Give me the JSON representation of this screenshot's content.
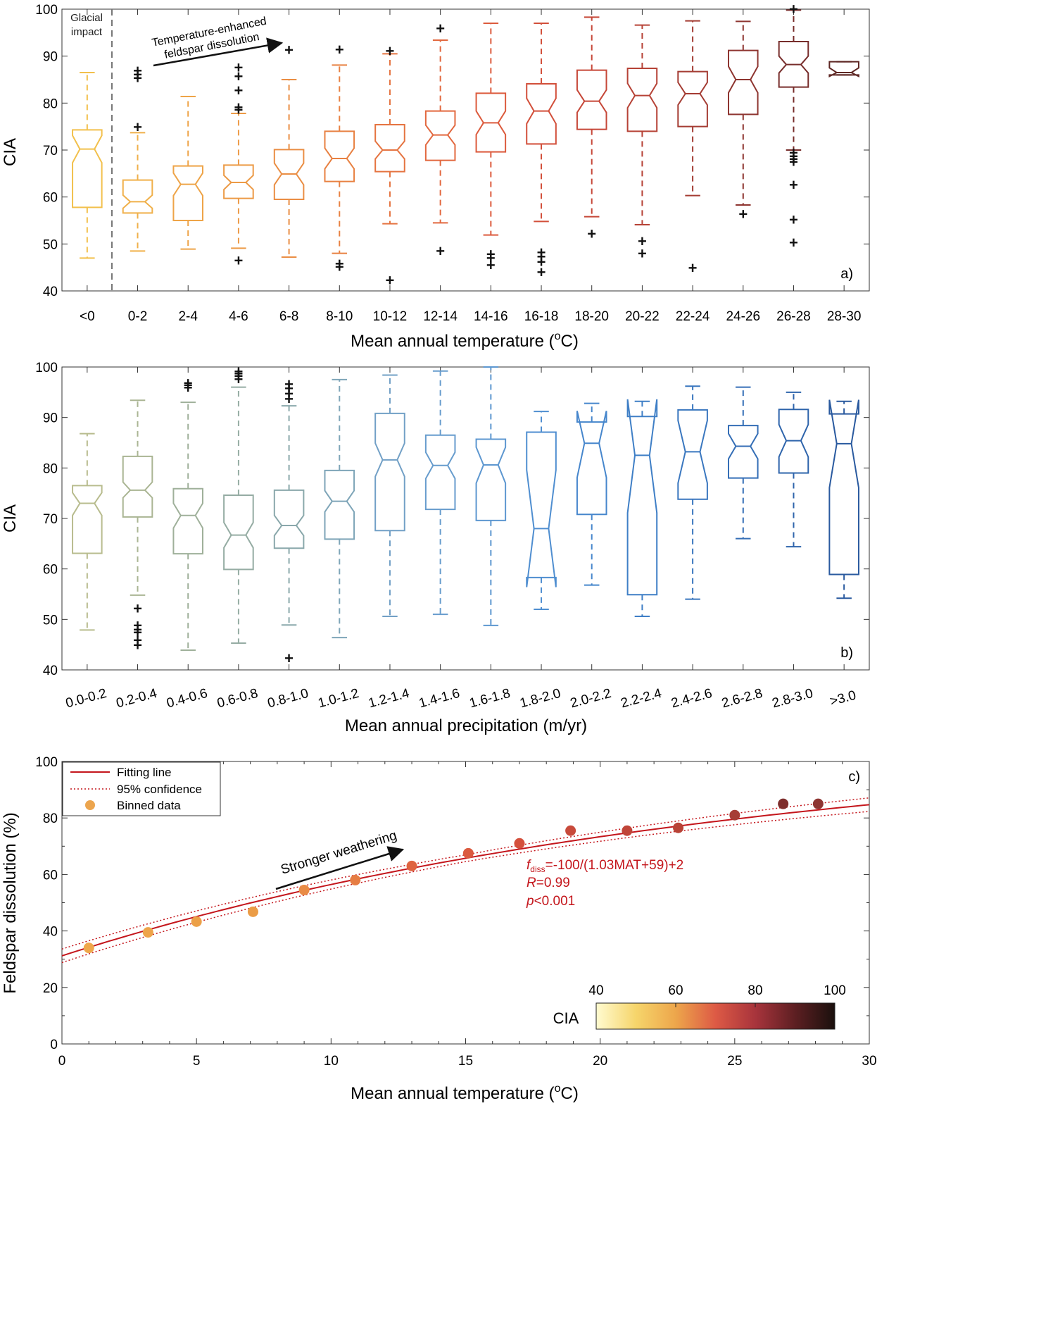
{
  "chart_data": [
    {
      "type": "box",
      "panel_label": "a)",
      "xlabel": "Mean annual temperature (",
      "xlabel_sup": "o",
      "xlabel_end": "C)",
      "ylabel": "CIA",
      "ylim": [
        40,
        100
      ],
      "yticks": [
        40,
        50,
        60,
        70,
        80,
        90,
        100
      ],
      "categories": [
        "<0",
        "0-2",
        "2-4",
        "4-6",
        "6-8",
        "8-10",
        "10-12",
        "12-14",
        "14-16",
        "16-18",
        "18-20",
        "20-22",
        "22-24",
        "24-26",
        "26-28",
        "28-30"
      ],
      "colors": [
        "#f2c04c",
        "#f0b04a",
        "#eea448",
        "#ec9a46",
        "#ea8e44",
        "#e88142",
        "#e57441",
        "#e2683f",
        "#dc5b3d",
        "#d24f3a",
        "#c64738",
        "#b64236",
        "#a43c33",
        "#8e3530",
        "#772d2b",
        "#5e2724"
      ],
      "boxes": [
        {
          "q1": 57.8,
          "median": 70.2,
          "q3": 74.3,
          "lo": 47.0,
          "hi": 86.5,
          "notch_lo": 67.3,
          "notch_hi": 73.1,
          "outliers": []
        },
        {
          "q1": 56.6,
          "median": 59.0,
          "q3": 63.6,
          "lo": 48.5,
          "hi": 73.7,
          "notch_lo": 57.6,
          "notch_hi": 60.4,
          "outliers": [
            74.8,
            85.2,
            86.0,
            86.8
          ]
        },
        {
          "q1": 55.0,
          "median": 62.7,
          "q3": 66.6,
          "lo": 48.9,
          "hi": 81.4,
          "notch_lo": 60.3,
          "notch_hi": 65.1,
          "outliers": []
        },
        {
          "q1": 59.7,
          "median": 63.1,
          "q3": 66.8,
          "lo": 49.1,
          "hi": 77.8,
          "notch_lo": 61.6,
          "notch_hi": 64.6,
          "outliers": [
            46.4,
            78.5,
            79.0,
            82.6,
            85.6,
            87.5
          ]
        },
        {
          "q1": 59.5,
          "median": 64.9,
          "q3": 70.1,
          "lo": 47.2,
          "hi": 85.0,
          "notch_lo": 62.6,
          "notch_hi": 67.2,
          "outliers": [
            91.2
          ]
        },
        {
          "q1": 63.3,
          "median": 68.2,
          "q3": 74.0,
          "lo": 48.0,
          "hi": 88.1,
          "notch_lo": 66.0,
          "notch_hi": 70.4,
          "outliers": [
            45.0,
            45.7,
            91.3
          ]
        },
        {
          "q1": 65.4,
          "median": 70.0,
          "q3": 75.4,
          "lo": 54.3,
          "hi": 90.5,
          "notch_lo": 68.1,
          "notch_hi": 71.9,
          "outliers": [
            42.2,
            91.0
          ]
        },
        {
          "q1": 67.8,
          "median": 73.2,
          "q3": 78.3,
          "lo": 54.5,
          "hi": 93.4,
          "notch_lo": 71.1,
          "notch_hi": 75.3,
          "outliers": [
            48.4,
            95.8
          ]
        },
        {
          "q1": 69.6,
          "median": 75.8,
          "q3": 82.1,
          "lo": 51.9,
          "hi": 97.0,
          "notch_lo": 73.3,
          "notch_hi": 78.3,
          "outliers": [
            45.4,
            46.9,
            47.7
          ]
        },
        {
          "q1": 71.3,
          "median": 78.3,
          "q3": 84.1,
          "lo": 54.8,
          "hi": 97.0,
          "notch_lo": 75.6,
          "notch_hi": 81.0,
          "outliers": [
            43.9,
            46.1,
            47.2,
            48.1
          ]
        },
        {
          "q1": 74.4,
          "median": 80.4,
          "q3": 87.0,
          "lo": 55.8,
          "hi": 98.3,
          "notch_lo": 78.0,
          "notch_hi": 82.8,
          "outliers": [
            52.1
          ]
        },
        {
          "q1": 74.0,
          "median": 81.6,
          "q3": 87.4,
          "lo": 54.1,
          "hi": 96.6,
          "notch_lo": 79.0,
          "notch_hi": 84.2,
          "outliers": [
            47.9,
            50.5
          ]
        },
        {
          "q1": 75.0,
          "median": 82.0,
          "q3": 86.7,
          "lo": 60.3,
          "hi": 97.5,
          "notch_lo": 79.6,
          "notch_hi": 84.4,
          "outliers": [
            44.8
          ]
        },
        {
          "q1": 77.6,
          "median": 85.0,
          "q3": 91.2,
          "lo": 58.3,
          "hi": 97.4,
          "notch_lo": 82.2,
          "notch_hi": 87.8,
          "outliers": [
            56.3
          ]
        },
        {
          "q1": 83.4,
          "median": 88.2,
          "q3": 93.1,
          "lo": 70.0,
          "hi": 99.8,
          "notch_lo": 86.4,
          "notch_hi": 90.0,
          "outliers": [
            50.2,
            55.1,
            62.5,
            67.4,
            68.0,
            68.6,
            69.3,
            99.9
          ]
        },
        {
          "q1": 86.0,
          "median": 86.5,
          "q3": 88.8,
          "lo": 86.0,
          "hi": 88.8,
          "notch_lo": 85.7,
          "notch_hi": 87.5,
          "outliers": []
        }
      ],
      "annotations": {
        "glacial_line1": "Glacial",
        "glacial_line2": "impact",
        "arrow_line1": "Temperature-enhanced",
        "arrow_line2": "feldspar dissolution"
      }
    },
    {
      "type": "box",
      "panel_label": "b)",
      "xlabel": "Mean annual precipitation (m/yr)",
      "ylabel": "CIA",
      "ylim": [
        40,
        100
      ],
      "yticks": [
        40,
        50,
        60,
        70,
        80,
        90,
        100
      ],
      "categories": [
        "0.0-0.2",
        "0.2-0.4",
        "0.4-0.6",
        "0.6-0.8",
        "0.8-1.0",
        "1.0-1.2",
        "1.2-1.4",
        "1.4-1.6",
        "1.6-1.8",
        "1.8-2.0",
        "2.0-2.2",
        "2.2-2.4",
        "2.4-2.6",
        "2.6-2.8",
        "2.8-3.0",
        ">3.0"
      ],
      "colors": [
        "#b8bc8e",
        "#aab593",
        "#9fb09a",
        "#95aca3",
        "#8aa8ab",
        "#7ea5b8",
        "#72a0c6",
        "#679ccd",
        "#5d97d0",
        "#4f8ed0",
        "#4686cc",
        "#3f7fc6",
        "#3a77bf",
        "#346eb6",
        "#2e64ab",
        "#2a5a9f"
      ],
      "boxes": [
        {
          "q1": 63.1,
          "median": 73.0,
          "q3": 76.5,
          "lo": 47.9,
          "hi": 86.8,
          "notch_lo": 70.6,
          "notch_hi": 75.1,
          "outliers": []
        },
        {
          "q1": 70.3,
          "median": 75.6,
          "q3": 82.3,
          "lo": 54.8,
          "hi": 93.4,
          "notch_lo": 74.1,
          "notch_hi": 77.2,
          "outliers": [
            44.8,
            45.8,
            47.3,
            47.9,
            48.7,
            52.1
          ]
        },
        {
          "q1": 63.0,
          "median": 70.6,
          "q3": 75.9,
          "lo": 43.9,
          "hi": 93.0,
          "notch_lo": 68.1,
          "notch_hi": 73.0,
          "outliers": [
            95.8,
            96.3,
            96.7
          ]
        },
        {
          "q1": 59.9,
          "median": 66.7,
          "q3": 74.6,
          "lo": 45.3,
          "hi": 96.0,
          "notch_lo": 64.2,
          "notch_hi": 69.2,
          "outliers": [
            97.5,
            98.1,
            98.6,
            99.0
          ]
        },
        {
          "q1": 64.1,
          "median": 68.6,
          "q3": 75.6,
          "lo": 48.9,
          "hi": 92.3,
          "notch_lo": 66.6,
          "notch_hi": 70.6,
          "outliers": [
            42.2,
            93.6,
            94.6,
            95.7,
            96.5
          ]
        },
        {
          "q1": 65.9,
          "median": 73.4,
          "q3": 79.5,
          "lo": 46.4,
          "hi": 97.5,
          "notch_lo": 71.3,
          "notch_hi": 75.5,
          "outliers": []
        },
        {
          "q1": 67.6,
          "median": 81.6,
          "q3": 90.8,
          "lo": 50.6,
          "hi": 98.4,
          "notch_lo": 78.3,
          "notch_hi": 84.9,
          "outliers": []
        },
        {
          "q1": 71.8,
          "median": 80.5,
          "q3": 86.5,
          "lo": 51.0,
          "hi": 99.2,
          "notch_lo": 77.9,
          "notch_hi": 83.1,
          "outliers": []
        },
        {
          "q1": 69.6,
          "median": 80.6,
          "q3": 85.7,
          "lo": 48.8,
          "hi": 100.0,
          "notch_lo": 77.0,
          "notch_hi": 84.1,
          "outliers": []
        },
        {
          "q1": 58.3,
          "median": 68.0,
          "q3": 87.1,
          "lo": 52.0,
          "hi": 91.2,
          "notch_lo": 56.4,
          "notch_hi": 79.6,
          "outliers": []
        },
        {
          "q1": 70.8,
          "median": 84.9,
          "q3": 89.1,
          "lo": 56.8,
          "hi": 92.8,
          "notch_lo": 78.1,
          "notch_hi": 91.3,
          "outliers": []
        },
        {
          "q1": 54.9,
          "median": 82.5,
          "q3": 90.2,
          "lo": 50.6,
          "hi": 93.2,
          "notch_lo": 71.1,
          "notch_hi": 93.6,
          "outliers": []
        },
        {
          "q1": 73.8,
          "median": 83.2,
          "q3": 91.5,
          "lo": 54.0,
          "hi": 96.2,
          "notch_lo": 77.0,
          "notch_hi": 89.4,
          "outliers": []
        },
        {
          "q1": 78.0,
          "median": 84.3,
          "q3": 88.4,
          "lo": 66.0,
          "hi": 96.0,
          "notch_lo": 81.8,
          "notch_hi": 86.8,
          "outliers": []
        },
        {
          "q1": 79.0,
          "median": 85.4,
          "q3": 91.6,
          "lo": 64.4,
          "hi": 95.0,
          "notch_lo": 82.2,
          "notch_hi": 88.6,
          "outliers": []
        },
        {
          "q1": 58.9,
          "median": 84.8,
          "q3": 90.7,
          "lo": 54.2,
          "hi": 93.2,
          "notch_lo": 76.1,
          "notch_hi": 93.5,
          "outliers": []
        }
      ]
    },
    {
      "type": "scatter",
      "panel_label": "c)",
      "xlabel": "Mean annual temperature (",
      "xlabel_sup": "o",
      "xlabel_end": "C)",
      "ylabel": "Feldspar dissolution (%)",
      "xlim": [
        0,
        30
      ],
      "ylim": [
        0,
        100
      ],
      "xticks": [
        0,
        5,
        10,
        15,
        20,
        25,
        30
      ],
      "yticks": [
        0,
        20,
        40,
        60,
        80,
        100
      ],
      "points": [
        {
          "x": 1.0,
          "y": 34.0,
          "color": "#efa84b"
        },
        {
          "x": 3.2,
          "y": 39.5,
          "color": "#eea449"
        },
        {
          "x": 5.0,
          "y": 43.3,
          "color": "#eca047"
        },
        {
          "x": 7.1,
          "y": 46.8,
          "color": "#eb9c46"
        },
        {
          "x": 9.0,
          "y": 54.5,
          "color": "#e98b45"
        },
        {
          "x": 10.9,
          "y": 58.0,
          "color": "#e67d43"
        },
        {
          "x": 13.0,
          "y": 63.0,
          "color": "#df6440"
        },
        {
          "x": 15.1,
          "y": 67.5,
          "color": "#db5a3f"
        },
        {
          "x": 17.0,
          "y": 71.0,
          "color": "#d4503c"
        },
        {
          "x": 18.9,
          "y": 75.5,
          "color": "#c84a3b"
        },
        {
          "x": 21.0,
          "y": 75.5,
          "color": "#c04539"
        },
        {
          "x": 22.9,
          "y": 76.5,
          "color": "#b84337"
        },
        {
          "x": 25.0,
          "y": 81.0,
          "color": "#a63e36"
        },
        {
          "x": 26.8,
          "y": 85.0,
          "color": "#7e2e2d"
        },
        {
          "x": 28.1,
          "y": 85.0,
          "color": "#8e3532"
        }
      ],
      "legend": {
        "fit": "Fitting line",
        "ci": "95% confidence",
        "binned": "Binned data",
        "position": "top-left"
      },
      "fit_color": "#c4161c",
      "arrow_label": "Stronger weathering",
      "equation": {
        "f": "f",
        "sub": "diss",
        "rest": "=-100/(1.03MAT+59)+2",
        "r_label": "R",
        "r_value": "=0.99",
        "p_label": "p",
        "p_value": "<0.001"
      },
      "colorbar": {
        "label": "CIA",
        "ticks": [
          40,
          60,
          80,
          100
        ],
        "colors": [
          "#fffbd0",
          "#f6d56b",
          "#eda64b",
          "#dd5a45",
          "#a8343c",
          "#5d1f22",
          "#1a100d"
        ]
      }
    }
  ]
}
